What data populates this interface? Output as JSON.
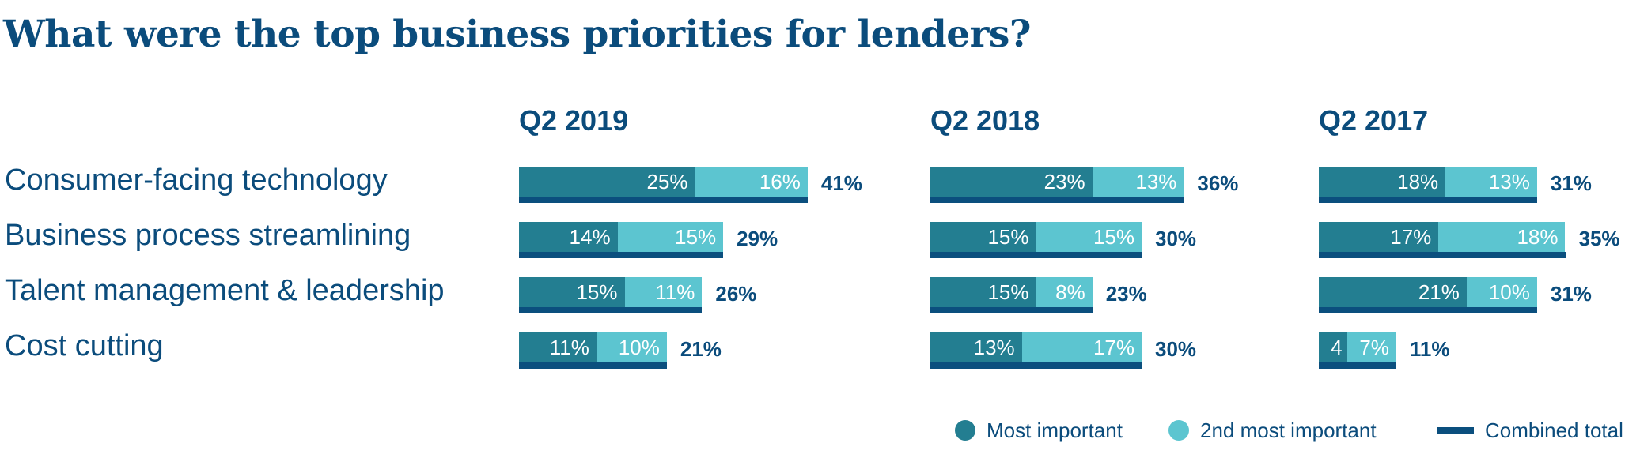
{
  "colors": {
    "title": "#0b4c7c",
    "most_important": "#237e91",
    "second_most_important": "#5cc5d0",
    "combined_total": "#0b4f7e"
  },
  "chart_data": {
    "type": "bar",
    "orientation": "horizontal-stacked",
    "title": "What were the top business priorities for lenders?",
    "categories": [
      "Consumer-facing technology",
      "Business process streamlining",
      "Talent management & leadership",
      "Cost cutting"
    ],
    "unit": "%",
    "groups": [
      {
        "label": "Q2 2019",
        "series": [
          {
            "name": "Most important",
            "values": [
              25,
              14,
              15,
              11
            ],
            "labels": [
              "25%",
              "14%",
              "15%",
              "11%"
            ]
          },
          {
            "name": "2nd most important",
            "values": [
              16,
              15,
              11,
              10
            ],
            "labels": [
              "16%",
              "15%",
              "11%",
              "10%"
            ]
          }
        ],
        "totals": [
          41,
          29,
          26,
          21
        ],
        "total_labels": [
          "41%",
          "29%",
          "26%",
          "21%"
        ]
      },
      {
        "label": "Q2 2018",
        "series": [
          {
            "name": "Most important",
            "values": [
              23,
              15,
              15,
              13
            ],
            "labels": [
              "23%",
              "15%",
              "15%",
              "13%"
            ]
          },
          {
            "name": "2nd most important",
            "values": [
              13,
              15,
              8,
              17
            ],
            "labels": [
              "13%",
              "15%",
              "8%",
              "17%"
            ]
          }
        ],
        "totals": [
          36,
          30,
          23,
          30
        ],
        "total_labels": [
          "36%",
          "30%",
          "23%",
          "30%"
        ]
      },
      {
        "label": "Q2 2017",
        "series": [
          {
            "name": "Most important",
            "values": [
              18,
              17,
              21,
              4
            ],
            "labels": [
              "18%",
              "17%",
              "21%",
              "4"
            ]
          },
          {
            "name": "2nd most important",
            "values": [
              13,
              18,
              10,
              7
            ],
            "labels": [
              "13%",
              "18%",
              "10%",
              "7%"
            ]
          }
        ],
        "totals": [
          31,
          35,
          31,
          11
        ],
        "total_labels": [
          "31%",
          "35%",
          "31%",
          "11%"
        ]
      }
    ],
    "legend": {
      "position": "bottom-right",
      "entries": [
        {
          "label": "Most important",
          "marker": "circle",
          "color_key": "most_important"
        },
        {
          "label": "2nd most important",
          "marker": "circle",
          "color_key": "second_most_important"
        },
        {
          "label": "Combined total",
          "marker": "line",
          "color_key": "combined_total"
        }
      ]
    }
  }
}
